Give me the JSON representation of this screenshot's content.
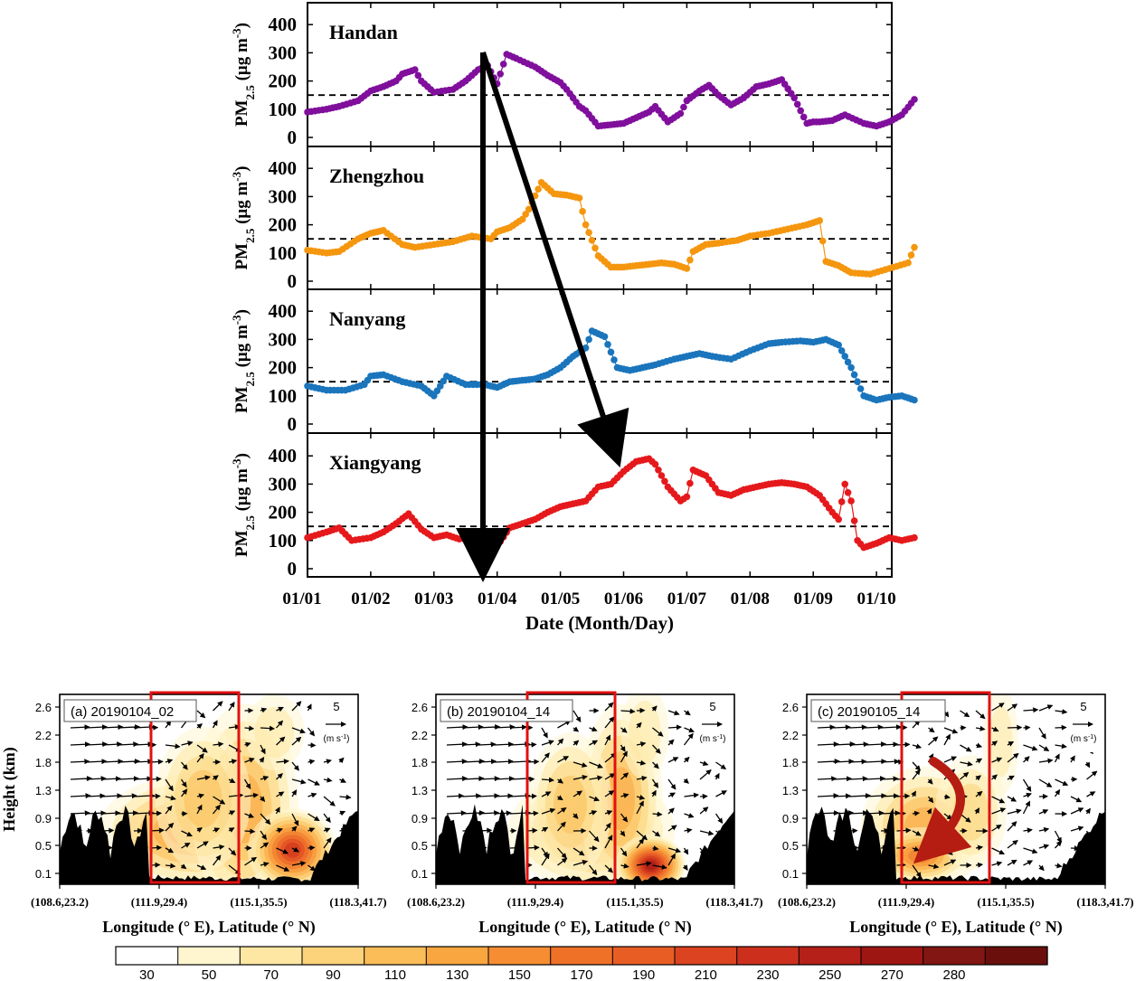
{
  "chart_data": [
    {
      "type": "scatter",
      "xlabel": "Date (Month/Day)",
      "x_ticks": [
        "01/01",
        "01/02",
        "01/03",
        "01/04",
        "01/05",
        "01/06",
        "01/07",
        "01/08",
        "01/09",
        "01/10"
      ],
      "x_range_days": [
        0,
        9.6
      ],
      "ylabel": "PM2.5 (μg m-3)",
      "ylabel_parts": {
        "main": "PM",
        "sub": "2.5",
        "unit_open": "(μg m",
        "sup": "-3",
        "unit_close": ")"
      },
      "ylim": [
        0,
        450
      ],
      "y_ticks": [
        0,
        100,
        200,
        300,
        400
      ],
      "threshold": 150,
      "series": [
        {
          "name": "Handan",
          "color": "#800f9c",
          "x": [
            0,
            0.3,
            0.5,
            0.8,
            1.0,
            1.2,
            1.4,
            1.5,
            1.7,
            1.8,
            2.0,
            2.3,
            2.5,
            2.7,
            2.85,
            3.0,
            3.15,
            3.3,
            3.6,
            3.8,
            4.0,
            4.1,
            4.3,
            4.4,
            4.6,
            4.8,
            5.0,
            5.2,
            5.4,
            5.5,
            5.7,
            5.9,
            6.0,
            6.2,
            6.35,
            6.5,
            6.7,
            6.9,
            7.1,
            7.3,
            7.5,
            7.7,
            7.9,
            8.0,
            8.1,
            8.3,
            8.5,
            8.8,
            9.0,
            9.2,
            9.4,
            9.6
          ],
          "y": [
            90,
            100,
            110,
            130,
            165,
            180,
            200,
            225,
            240,
            200,
            160,
            170,
            200,
            240,
            255,
            190,
            295,
            280,
            250,
            220,
            195,
            170,
            110,
            95,
            40,
            45,
            50,
            70,
            90,
            110,
            55,
            85,
            130,
            165,
            185,
            150,
            115,
            140,
            180,
            190,
            205,
            140,
            50,
            55,
            55,
            60,
            80,
            50,
            40,
            55,
            80,
            135
          ]
        },
        {
          "name": "Zhengzhou",
          "color": "#f5960f",
          "x": [
            0,
            0.3,
            0.5,
            0.8,
            1.0,
            1.2,
            1.5,
            1.7,
            2.0,
            2.3,
            2.6,
            2.9,
            3.0,
            3.2,
            3.4,
            3.5,
            3.7,
            3.9,
            4.1,
            4.3,
            4.4,
            4.6,
            4.8,
            5.0,
            5.2,
            5.4,
            5.6,
            5.8,
            6.0,
            6.1,
            6.3,
            6.5,
            6.8,
            7.0,
            7.3,
            7.6,
            7.9,
            8.1,
            8.2,
            8.4,
            8.6,
            8.9,
            9.2,
            9.5,
            9.6
          ],
          "y": [
            110,
            100,
            105,
            150,
            170,
            180,
            130,
            120,
            130,
            140,
            160,
            150,
            175,
            190,
            220,
            255,
            350,
            310,
            305,
            295,
            200,
            90,
            50,
            50,
            55,
            60,
            65,
            60,
            45,
            105,
            130,
            135,
            145,
            160,
            170,
            185,
            200,
            215,
            70,
            55,
            30,
            25,
            45,
            65,
            120
          ]
        },
        {
          "name": "Nanyang",
          "color": "#1a75bc",
          "x": [
            0,
            0.3,
            0.6,
            0.9,
            1.0,
            1.2,
            1.5,
            1.8,
            2.0,
            2.2,
            2.5,
            2.8,
            3.0,
            3.2,
            3.4,
            3.6,
            3.8,
            4.0,
            4.2,
            4.4,
            4.5,
            4.7,
            4.9,
            5.1,
            5.3,
            5.5,
            5.8,
            6.0,
            6.2,
            6.4,
            6.7,
            7.0,
            7.3,
            7.5,
            7.8,
            8.0,
            8.2,
            8.4,
            8.6,
            8.8,
            9.0,
            9.2,
            9.4,
            9.6
          ],
          "y": [
            135,
            120,
            120,
            140,
            170,
            175,
            150,
            135,
            100,
            170,
            140,
            140,
            130,
            150,
            155,
            160,
            175,
            200,
            240,
            270,
            330,
            310,
            200,
            190,
            200,
            210,
            230,
            240,
            250,
            240,
            230,
            260,
            285,
            290,
            295,
            290,
            300,
            280,
            200,
            100,
            85,
            95,
            100,
            85
          ]
        },
        {
          "name": "Xiangyang",
          "color": "#e5191c",
          "x": [
            0,
            0.3,
            0.5,
            0.7,
            1.0,
            1.2,
            1.4,
            1.6,
            1.8,
            2.0,
            2.2,
            2.4,
            2.6,
            2.8,
            3.0,
            3.2,
            3.4,
            3.6,
            3.8,
            4.0,
            4.2,
            4.4,
            4.6,
            4.8,
            5.0,
            5.2,
            5.4,
            5.5,
            5.7,
            5.9,
            6.0,
            6.1,
            6.3,
            6.5,
            6.7,
            6.9,
            7.1,
            7.3,
            7.5,
            7.7,
            7.9,
            8.1,
            8.3,
            8.4,
            8.5,
            8.6,
            8.7,
            8.8,
            9.0,
            9.2,
            9.4,
            9.6
          ],
          "y": [
            110,
            130,
            145,
            100,
            110,
            130,
            160,
            195,
            140,
            110,
            120,
            105,
            115,
            100,
            80,
            145,
            160,
            175,
            200,
            220,
            230,
            240,
            290,
            300,
            345,
            380,
            390,
            370,
            290,
            240,
            255,
            350,
            330,
            270,
            260,
            280,
            290,
            300,
            305,
            300,
            290,
            260,
            200,
            175,
            300,
            240,
            100,
            75,
            90,
            110,
            100,
            110
          ]
        }
      ]
    },
    {
      "type": "heatmap",
      "panels": [
        {
          "label": "(a) 20190104_02"
        },
        {
          "label": "(b) 20190104_14"
        },
        {
          "label": "(c) 20190105_14"
        }
      ],
      "ylabel": "Height (km)",
      "y_ticks": [
        "0.1",
        "0.5",
        "0.9",
        "1.3",
        "1.8",
        "2.2",
        "2.6"
      ],
      "x_ticks": [
        "(108.6,23.2)",
        "(111.9,29.4)",
        "(115.1,35.5)",
        "(118.3,41.7)"
      ],
      "xlabel": "Longitude (° E), Latitude (° N)",
      "ref_vector": {
        "value": "5",
        "unit": "(m s-1)",
        "unit_parts": {
          "open": "(m s",
          "sup": "-1",
          "close": ")"
        }
      },
      "colorbar": {
        "ticks": [
          "30",
          "50",
          "70",
          "90",
          "110",
          "130",
          "150",
          "170",
          "190",
          "210",
          "230",
          "250",
          "270",
          "280"
        ],
        "colors": [
          "#ffffff",
          "#fff6d0",
          "#fde7a2",
          "#fcd37a",
          "#fbbd58",
          "#f9a640",
          "#f68d32",
          "#ef7128",
          "#e85d24",
          "#dc4320",
          "#cc301c",
          "#b52018",
          "#9e1612",
          "#821612",
          "#6a0f0c"
        ]
      }
    }
  ]
}
